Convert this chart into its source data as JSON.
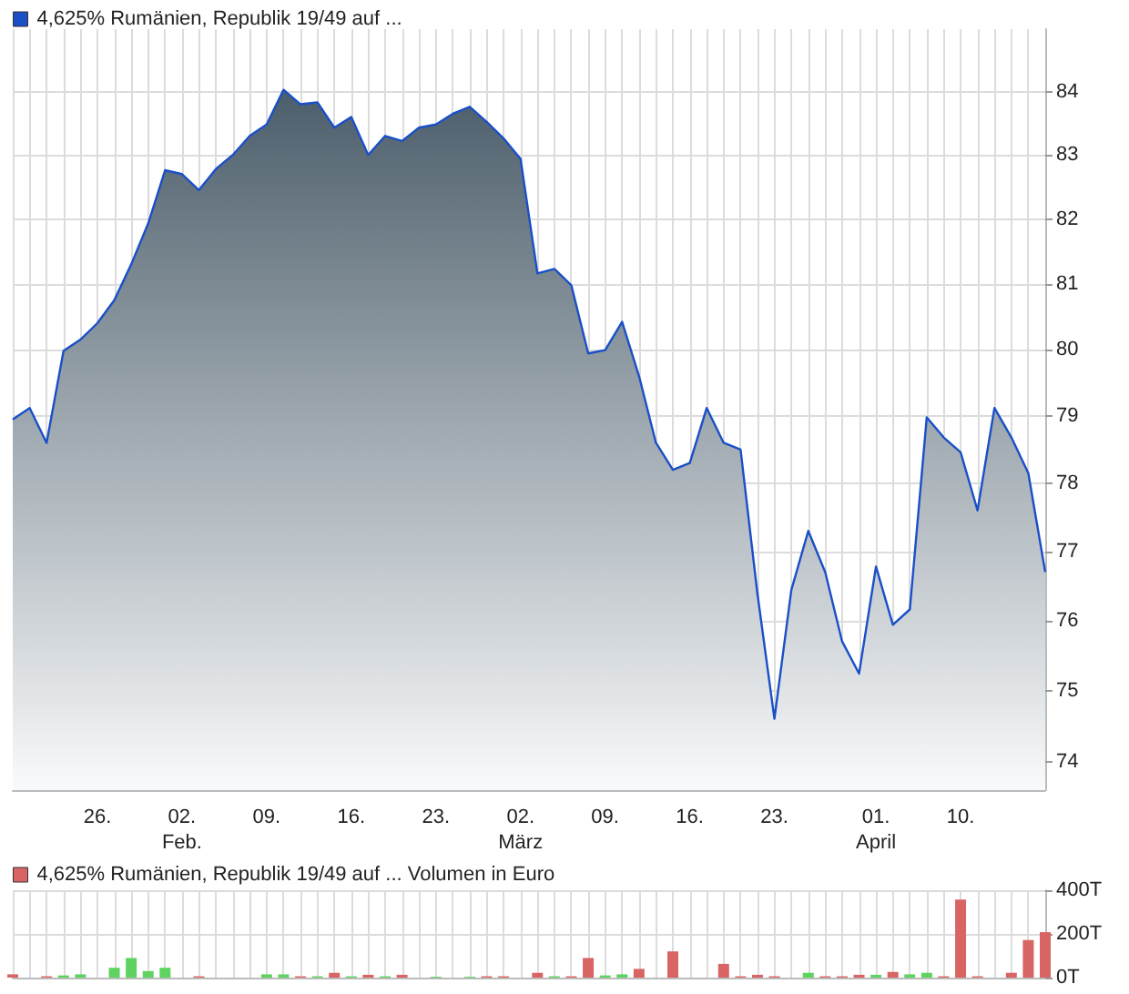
{
  "chart_data": [
    {
      "type": "area",
      "log": true,
      "categories": [
        null,
        null,
        null,
        null,
        null,
        "26.",
        null,
        null,
        null,
        null,
        "02.\nFeb.",
        null,
        null,
        null,
        null,
        "09.",
        null,
        null,
        null,
        null,
        "16.",
        null,
        null,
        null,
        null,
        "23.",
        null,
        null,
        null,
        null,
        "02.\nMärz",
        null,
        null,
        null,
        null,
        "09.",
        null,
        null,
        null,
        null,
        "16.",
        null,
        null,
        null,
        null,
        "23.",
        null,
        null,
        null,
        null,
        null,
        "01.\nApril",
        null,
        null,
        null,
        null,
        "10.",
        null,
        null,
        null,
        null,
        null
      ],
      "series": [
        {
          "name": "4,625% Rumänien, Republik 19/49 auf ...",
          "color": "#1a4fc8",
          "values": [
            78.95,
            79.12,
            78.6,
            79.98,
            80.15,
            80.4,
            80.75,
            81.3,
            81.93,
            82.76,
            82.7,
            82.45,
            82.78,
            83.0,
            83.3,
            83.48,
            84.03,
            83.8,
            83.83,
            83.43,
            83.6,
            83.0,
            83.3,
            83.22,
            83.43,
            83.48,
            83.65,
            83.76,
            83.52,
            83.26,
            82.94,
            81.16,
            81.23,
            80.98,
            79.94,
            79.99,
            80.42,
            79.6,
            78.6,
            78.2,
            78.3,
            79.12,
            78.6,
            78.5,
            76.38,
            74.6,
            76.44,
            77.3,
            76.7,
            75.7,
            75.24,
            76.78,
            75.94,
            76.16,
            78.98,
            78.68,
            78.46,
            77.6,
            79.12,
            78.68,
            78.15,
            76.7
          ]
        }
      ],
      "ylim": [
        73.6,
        85
      ],
      "yticks": [
        74,
        75,
        76,
        77,
        78,
        79,
        80,
        81,
        82,
        83,
        84
      ],
      "grid": true,
      "legend": "top left"
    },
    {
      "type": "bar",
      "categories": [
        null,
        null,
        null,
        null,
        null,
        null,
        null,
        null,
        null,
        null,
        null,
        null,
        null,
        null,
        null,
        null,
        null,
        null,
        null,
        null,
        null,
        null,
        null,
        null,
        null,
        null,
        null,
        null,
        null,
        null,
        null,
        null,
        null,
        null,
        null,
        null,
        null,
        null,
        null,
        null,
        null,
        null,
        null,
        null,
        null,
        null,
        null,
        null,
        null,
        null,
        null,
        null,
        null,
        null,
        null,
        null,
        null,
        null,
        null,
        null,
        null,
        null
      ],
      "series": [
        {
          "name": "4,625% Rumänien, Republik 19/49 auf ... Volumen in Euro",
          "color": "#d96464",
          "values": [
            15,
            null,
            6,
            10,
            15,
            null,
            45,
            90,
            30,
            45,
            null,
            6,
            null,
            null,
            null,
            15,
            15,
            6,
            6,
            22,
            6,
            13,
            6,
            13,
            null,
            4,
            null,
            4,
            6,
            6,
            null,
            22,
            6,
            6,
            90,
            10,
            15,
            40,
            null,
            120,
            null,
            null,
            63,
            6,
            13,
            6,
            null,
            22,
            6,
            6,
            13,
            13,
            26,
            15,
            22,
            6,
            357,
            6,
            null,
            22,
            172,
            208
          ],
          "colors": [
            "#d96464",
            null,
            "#d96464",
            "#5fd35f",
            "#5fd35f",
            null,
            "#5fd35f",
            "#5fd35f",
            "#5fd35f",
            "#5fd35f",
            null,
            "#d96464",
            null,
            null,
            null,
            "#5fd35f",
            "#5fd35f",
            "#d96464",
            "#5fd35f",
            "#d96464",
            "#5fd35f",
            "#d96464",
            "#5fd35f",
            "#d96464",
            null,
            "#5fd35f",
            null,
            "#5fd35f",
            "#d96464",
            "#d96464",
            null,
            "#d96464",
            "#5fd35f",
            "#d96464",
            "#d96464",
            "#5fd35f",
            "#5fd35f",
            "#d96464",
            null,
            "#d96464",
            null,
            null,
            "#d96464",
            "#d96464",
            "#d96464",
            "#d96464",
            null,
            "#5fd35f",
            "#d96464",
            "#d96464",
            "#d96464",
            "#5fd35f",
            "#d96464",
            "#5fd35f",
            "#5fd35f",
            "#d96464",
            "#d96464",
            "#d96464",
            null,
            "#d96464",
            "#d96464",
            "#d96464"
          ]
        }
      ],
      "ylim": [
        0,
        400
      ],
      "yticks": [
        {
          "value": 0,
          "label": "0T"
        },
        {
          "value": 200,
          "label": "200T"
        },
        {
          "value": 400,
          "label": "400T"
        }
      ],
      "grid": true,
      "legend": "top left"
    }
  ]
}
